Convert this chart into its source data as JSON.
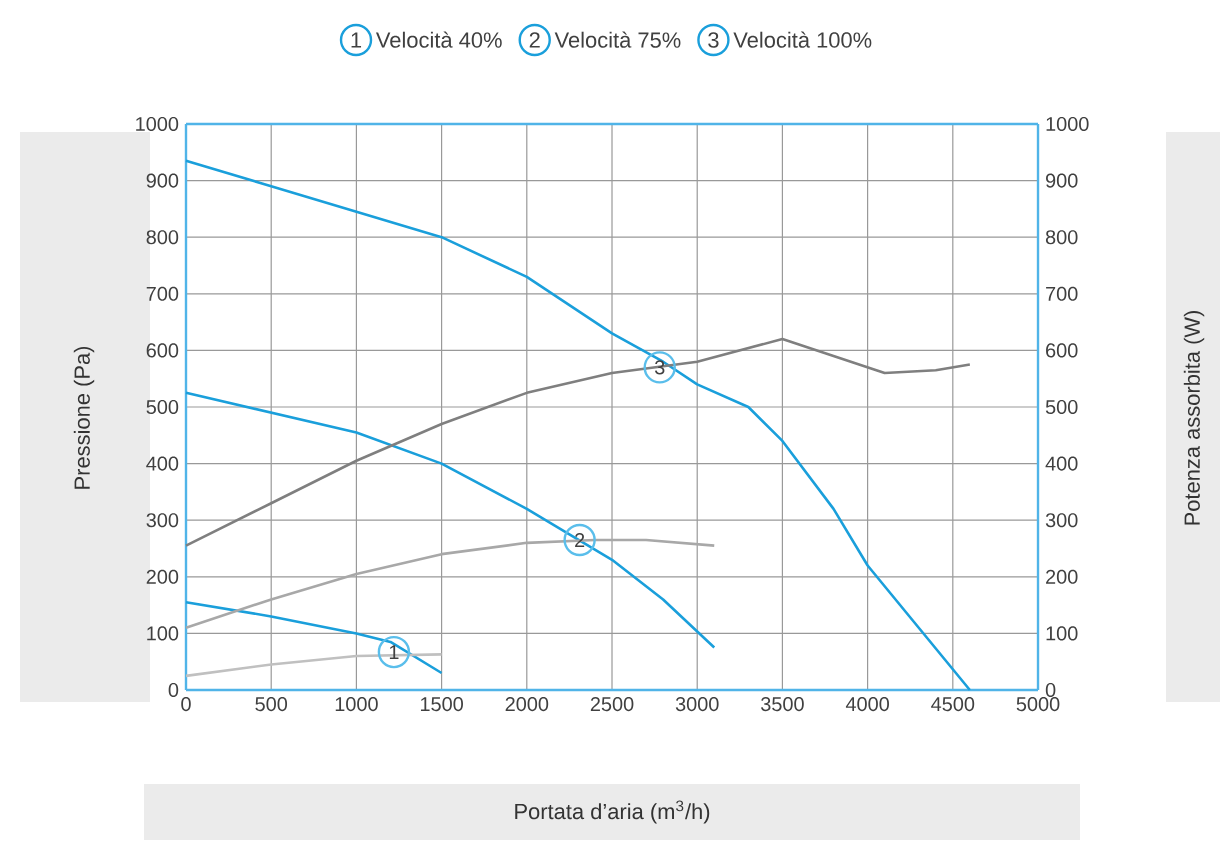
{
  "chart_data": {
    "type": "line",
    "xlabel": "Portata d’aria (m$^{3}$/h)",
    "ylabel": "Pressione (Pa)",
    "y2label": "Potenza assorbita (W)",
    "xlim": [
      0,
      5000
    ],
    "xticks": [
      0,
      500,
      1000,
      1500,
      2000,
      2500,
      3000,
      3500,
      4000,
      4500,
      5000
    ],
    "ylim": [
      0,
      1000
    ],
    "yticks": [
      0,
      100,
      200,
      300,
      400,
      500,
      600,
      700,
      800,
      900,
      1000
    ],
    "y2lim": [
      0,
      1000
    ],
    "y2ticks": [
      0,
      100,
      200,
      300,
      400,
      500,
      600,
      700,
      800,
      900,
      1000
    ],
    "grid": true,
    "legend": "top",
    "marker": "none",
    "line_style": "solid",
    "series": [
      {
        "name": "Velocità 40%",
        "color": "#1a9fdb",
        "x": [
          0,
          500,
          1000,
          1200,
          1500
        ],
        "values": [
          155,
          130,
          100,
          85,
          30
        ]
      },
      {
        "name": "Velocità 75%",
        "color": "#1a9fdb",
        "x": [
          0,
          500,
          1000,
          1500,
          2000,
          2500,
          2800,
          3100
        ],
        "values": [
          525,
          490,
          455,
          400,
          320,
          230,
          160,
          75
        ]
      },
      {
        "name": "Velocità 100%",
        "color": "#1a9fdb",
        "x": [
          0,
          500,
          1000,
          1500,
          2000,
          2500,
          2800,
          3000,
          3300,
          3500,
          3800,
          4000,
          4300,
          4600
        ],
        "values": [
          935,
          890,
          845,
          800,
          730,
          630,
          580,
          540,
          500,
          440,
          320,
          220,
          110,
          0
        ]
      },
      {
        "color": "#c0c0c0",
        "axis": "y2",
        "x": [
          0,
          500,
          1000,
          1500
        ],
        "values": [
          25,
          45,
          60,
          63
        ]
      },
      {
        "color": "#a8a8a8",
        "axis": "y2",
        "x": [
          0,
          500,
          1000,
          1500,
          2000,
          2400,
          2700,
          3100
        ],
        "values": [
          110,
          160,
          205,
          240,
          260,
          265,
          265,
          255
        ]
      },
      {
        "color": "#7f7f7f",
        "axis": "y2",
        "x": [
          0,
          500,
          1000,
          1500,
          2000,
          2500,
          3000,
          3250,
          3500,
          3800,
          4100,
          4400,
          4600
        ],
        "values": [
          255,
          330,
          405,
          470,
          525,
          560,
          580,
          600,
          620,
          590,
          560,
          565,
          575
        ]
      }
    ],
    "annotations": [
      "1",
      "2",
      "3",
      {
        "text": "1",
        "x": 1220,
        "y": 67
      },
      {
        "text": "2",
        "x": 2310,
        "y": 265
      },
      {
        "text": "3",
        "x": 2780,
        "y": 570
      }
    ]
  }
}
